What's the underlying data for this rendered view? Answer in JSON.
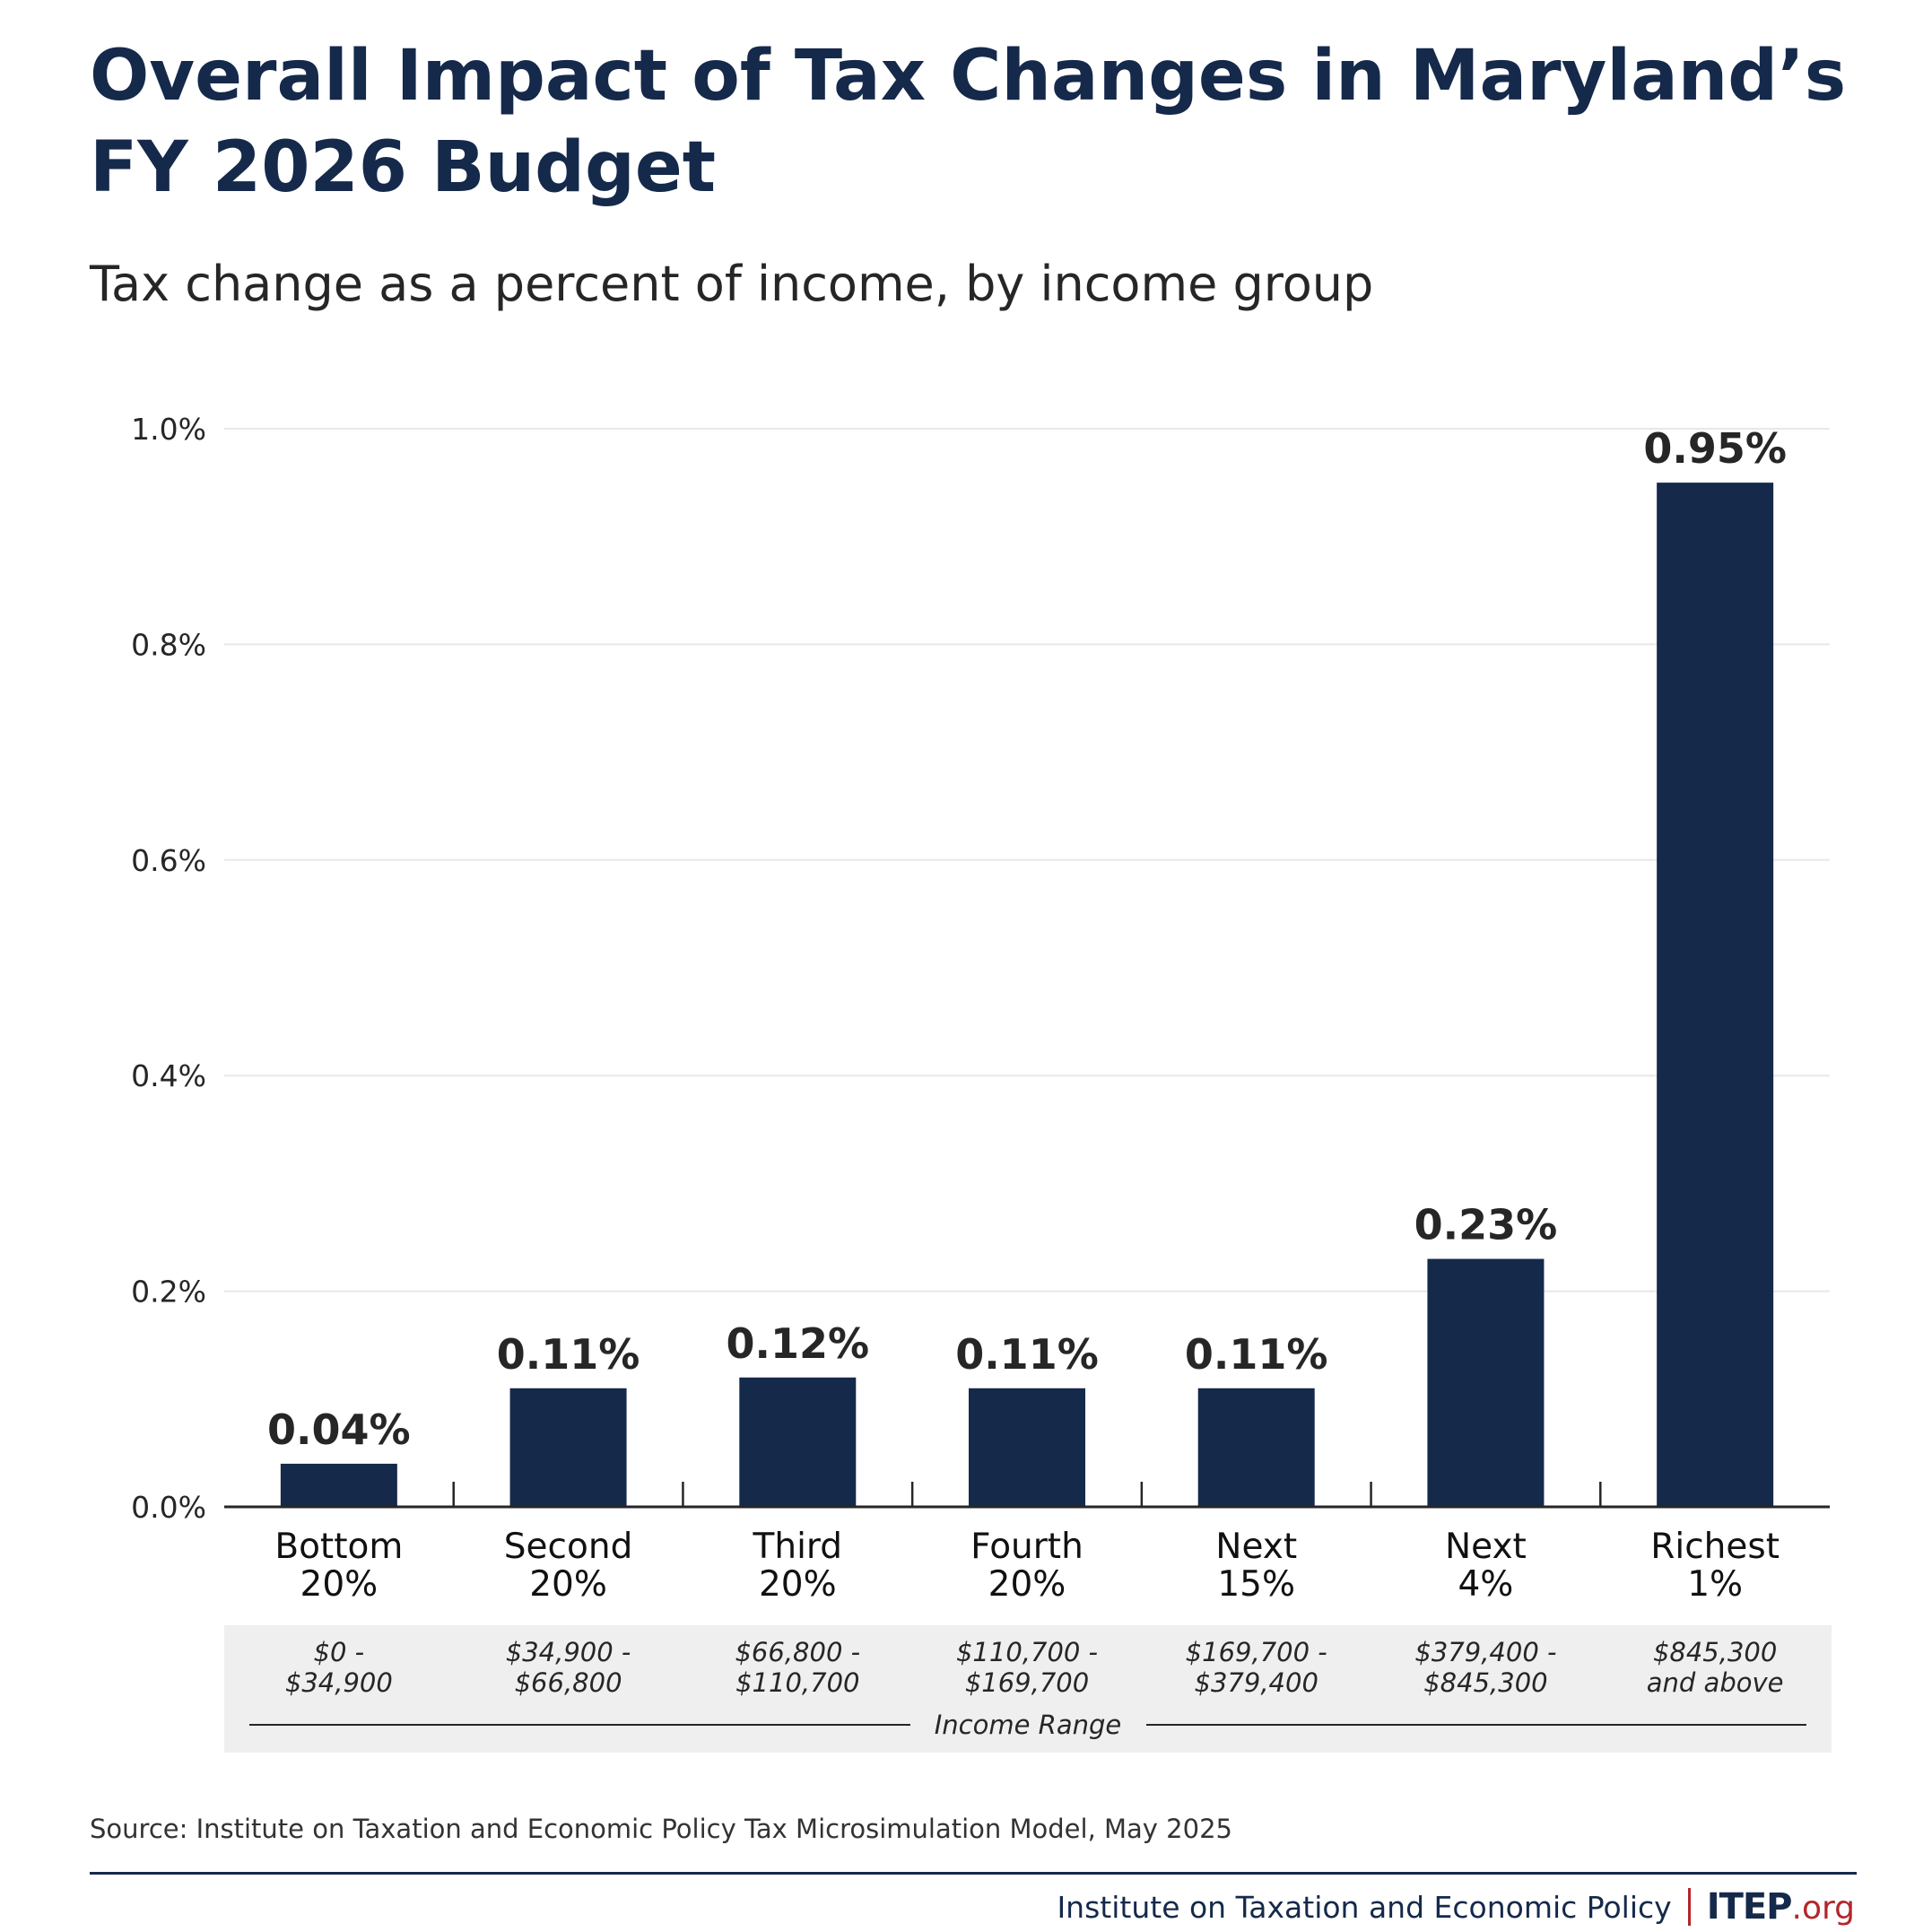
{
  "title": "Overall Impact of Tax Changes in Maryland’s FY 2026 Budget",
  "subtitle": "Tax change as a percent of income, by income group",
  "source": "Source: Institute on Taxation and Economic Policy Tax Microsimulation Model, May 2025",
  "footer": {
    "org_name": "Institute on Taxation and Economic Policy",
    "logo_main": "ITEP",
    "logo_suffix": ".org"
  },
  "colors": {
    "bar": "#15294b",
    "title": "#15294b",
    "accent": "#b3262b",
    "range_band": "#efefef"
  },
  "chart_data": {
    "type": "bar",
    "categories": [
      [
        "Bottom",
        "20%"
      ],
      [
        "Second",
        "20%"
      ],
      [
        "Third",
        "20%"
      ],
      [
        "Fourth",
        "20%"
      ],
      [
        "Next",
        "15%"
      ],
      [
        "Next",
        "4%"
      ],
      [
        "Richest",
        "1%"
      ]
    ],
    "income_ranges": [
      [
        "$0 -",
        "$34,900"
      ],
      [
        "$34,900 -",
        "$66,800"
      ],
      [
        "$66,800 -",
        "$110,700"
      ],
      [
        "$110,700 -",
        "$169,700"
      ],
      [
        "$169,700 -",
        "$379,400"
      ],
      [
        "$379,400 -",
        "$845,300"
      ],
      [
        "$845,300",
        "and above"
      ]
    ],
    "income_range_label": "Income Range",
    "values": [
      0.04,
      0.11,
      0.12,
      0.11,
      0.11,
      0.23,
      0.95
    ],
    "value_labels": [
      "0.04%",
      "0.11%",
      "0.12%",
      "0.11%",
      "0.11%",
      "0.23%",
      "0.95%"
    ],
    "ylim": [
      0,
      1.0
    ],
    "yticks": [
      0,
      0.2,
      0.4,
      0.6,
      0.8,
      1.0
    ],
    "ytick_labels": [
      "0.0%",
      "0.2%",
      "0.4%",
      "0.6%",
      "0.8%",
      "1.0%"
    ],
    "grid": true
  }
}
